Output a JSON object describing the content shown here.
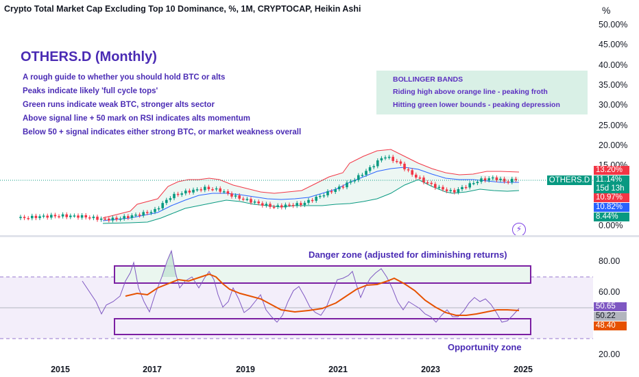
{
  "header": {
    "title": "Crypto Total Market Cap Excluding Top 10 Dominance, %, 1M, CRYPTOCAP, Heikin Ashi",
    "unit_button": "%"
  },
  "notes": {
    "heading": "OTHERS.D (Monthly)",
    "lines": [
      "A rough guide to whether you should hold BTC or alts",
      "Peaks indicate likely 'full cycle tops'",
      "Green runs indicate weak BTC, stronger alts sector",
      "Above signal line + 50 mark on RSI indicates alts momentum",
      "Below 50 + signal indicates either strong BTC, or market weakness overall"
    ]
  },
  "bollinger_note": {
    "title": "BOLLINGER BANDS",
    "lines": [
      "Riding high above orange line - peaking froth",
      "Hitting green lower bounds - peaking depression"
    ]
  },
  "price_axis": [
    "50.00%",
    "45.00%",
    "40.00%",
    "35.00%",
    "30.00%",
    "25.00%",
    "20.00%",
    "15.00%",
    "0.00%"
  ],
  "price_tags": {
    "symbol": "OTHERS.D",
    "upper_band": "13.20%",
    "last_price": "11.14%",
    "countdown": "15d 13h",
    "open": "10.97%",
    "basis": "10.82%",
    "lower_band": "8.44%"
  },
  "rsi_axis": [
    "80.00",
    "60.00",
    "20.00"
  ],
  "rsi_tags": {
    "rsi": "50.65",
    "mid": "50.22",
    "signal": "48.40"
  },
  "zones": {
    "danger": "Danger zone (adjusted for diminishing returns)",
    "opportunity": "Opportunity zone"
  },
  "time_axis": [
    "2015",
    "2017",
    "2019",
    "2021",
    "2023",
    "2025"
  ],
  "colors": {
    "up": "#089981",
    "down": "#f23645",
    "upper_band": "#f23645",
    "basis": "#2962ff",
    "lower_band": "#089981",
    "rsi": "#7e57c2",
    "signal": "#e65100",
    "annotation": "#4a2bb4",
    "bb_note_bg": "#d9f0e6"
  },
  "chart_data": {
    "type": "candlestick",
    "series": [
      {
        "name": "OTHERS.D",
        "x": [
          "2015-01",
          "2015-07",
          "2016-01",
          "2016-07",
          "2017-01",
          "2017-04",
          "2017-07",
          "2018-01",
          "2018-07",
          "2019-01",
          "2019-07",
          "2020-01",
          "2020-07",
          "2021-01",
          "2021-05",
          "2021-09",
          "2022-01",
          "2022-04",
          "2022-07",
          "2023-01",
          "2023-07",
          "2024-01",
          "2024-04",
          "2024-07",
          "2025-01"
        ],
        "values": [
          1.0,
          1.5,
          1.2,
          0.6,
          2.2,
          7.0,
          9.5,
          9.0,
          7.5,
          6.0,
          4.5,
          4.0,
          6.0,
          8.0,
          10.0,
          14.0,
          18.0,
          16.0,
          13.0,
          11.0,
          10.5,
          12.0,
          13.0,
          11.5,
          11.14
        ]
      }
    ],
    "indicator": "RSI",
    "rsi_levels": [
      80,
      60,
      20
    ]
  }
}
